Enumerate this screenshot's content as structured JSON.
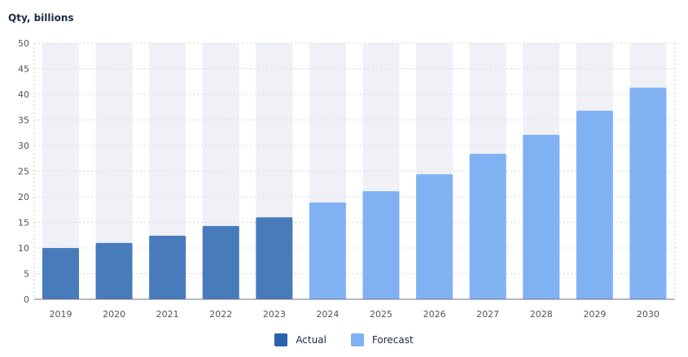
{
  "chart_data": {
    "type": "bar",
    "ylabel": "Qty, billions",
    "categories": [
      "2019",
      "2020",
      "2021",
      "2022",
      "2023",
      "2024",
      "2025",
      "2026",
      "2027",
      "2028",
      "2029",
      "2030"
    ],
    "values": [
      10.0,
      11.0,
      12.4,
      14.3,
      16.0,
      18.9,
      21.1,
      24.4,
      28.4,
      32.1,
      36.8,
      41.3
    ],
    "series_by_category": [
      "Actual",
      "Actual",
      "Actual",
      "Actual",
      "Actual",
      "Forecast",
      "Forecast",
      "Forecast",
      "Forecast",
      "Forecast",
      "Forecast",
      "Forecast"
    ],
    "yticks": [
      0,
      5,
      10,
      15,
      20,
      25,
      30,
      35,
      40,
      45,
      50
    ],
    "ylim": [
      0,
      50
    ],
    "grid": true,
    "legend": {
      "placement": "bottom",
      "items": [
        {
          "name": "Actual",
          "color": "#2a62b0"
        },
        {
          "name": "Forecast",
          "color": "#80b2f3"
        }
      ]
    },
    "colors": {
      "Actual": "#477bbc",
      "Forecast": "#80b2f3",
      "background_band": "#f0f1f7"
    }
  }
}
